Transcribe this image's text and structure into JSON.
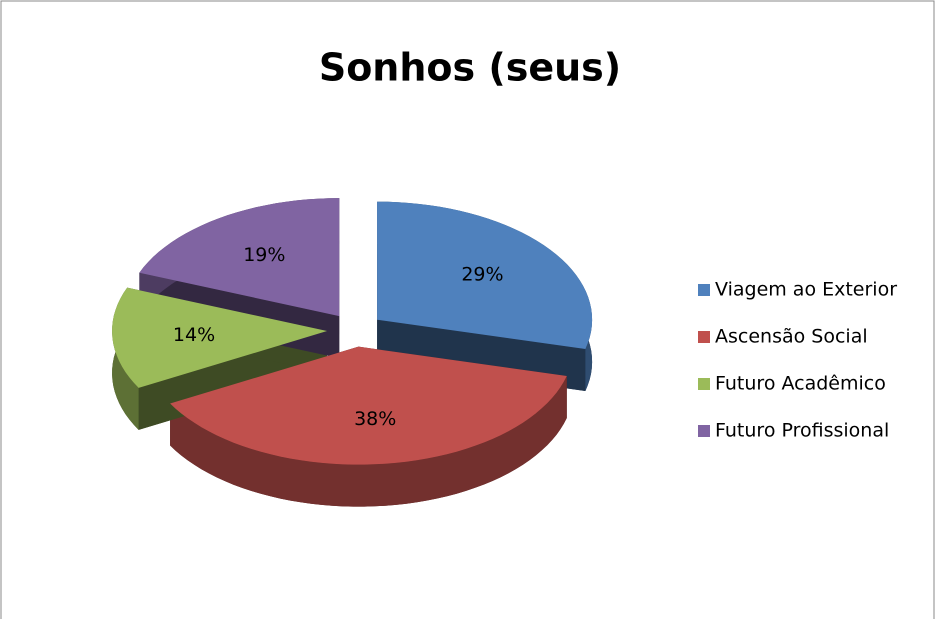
{
  "chart_data": {
    "type": "pie",
    "title": "Sonhos (seus)",
    "categories": [
      "Viagem ao Exterior",
      "Ascensão Social",
      "Futuro Acadêmico",
      "Futuro Profissional"
    ],
    "values": [
      29,
      38,
      14,
      19
    ],
    "value_labels": [
      "29%",
      "38%",
      "14%",
      "19%"
    ],
    "colors": [
      "#4f81bd",
      "#c0504d",
      "#9bbb59",
      "#8064a2"
    ],
    "legend": "right"
  }
}
